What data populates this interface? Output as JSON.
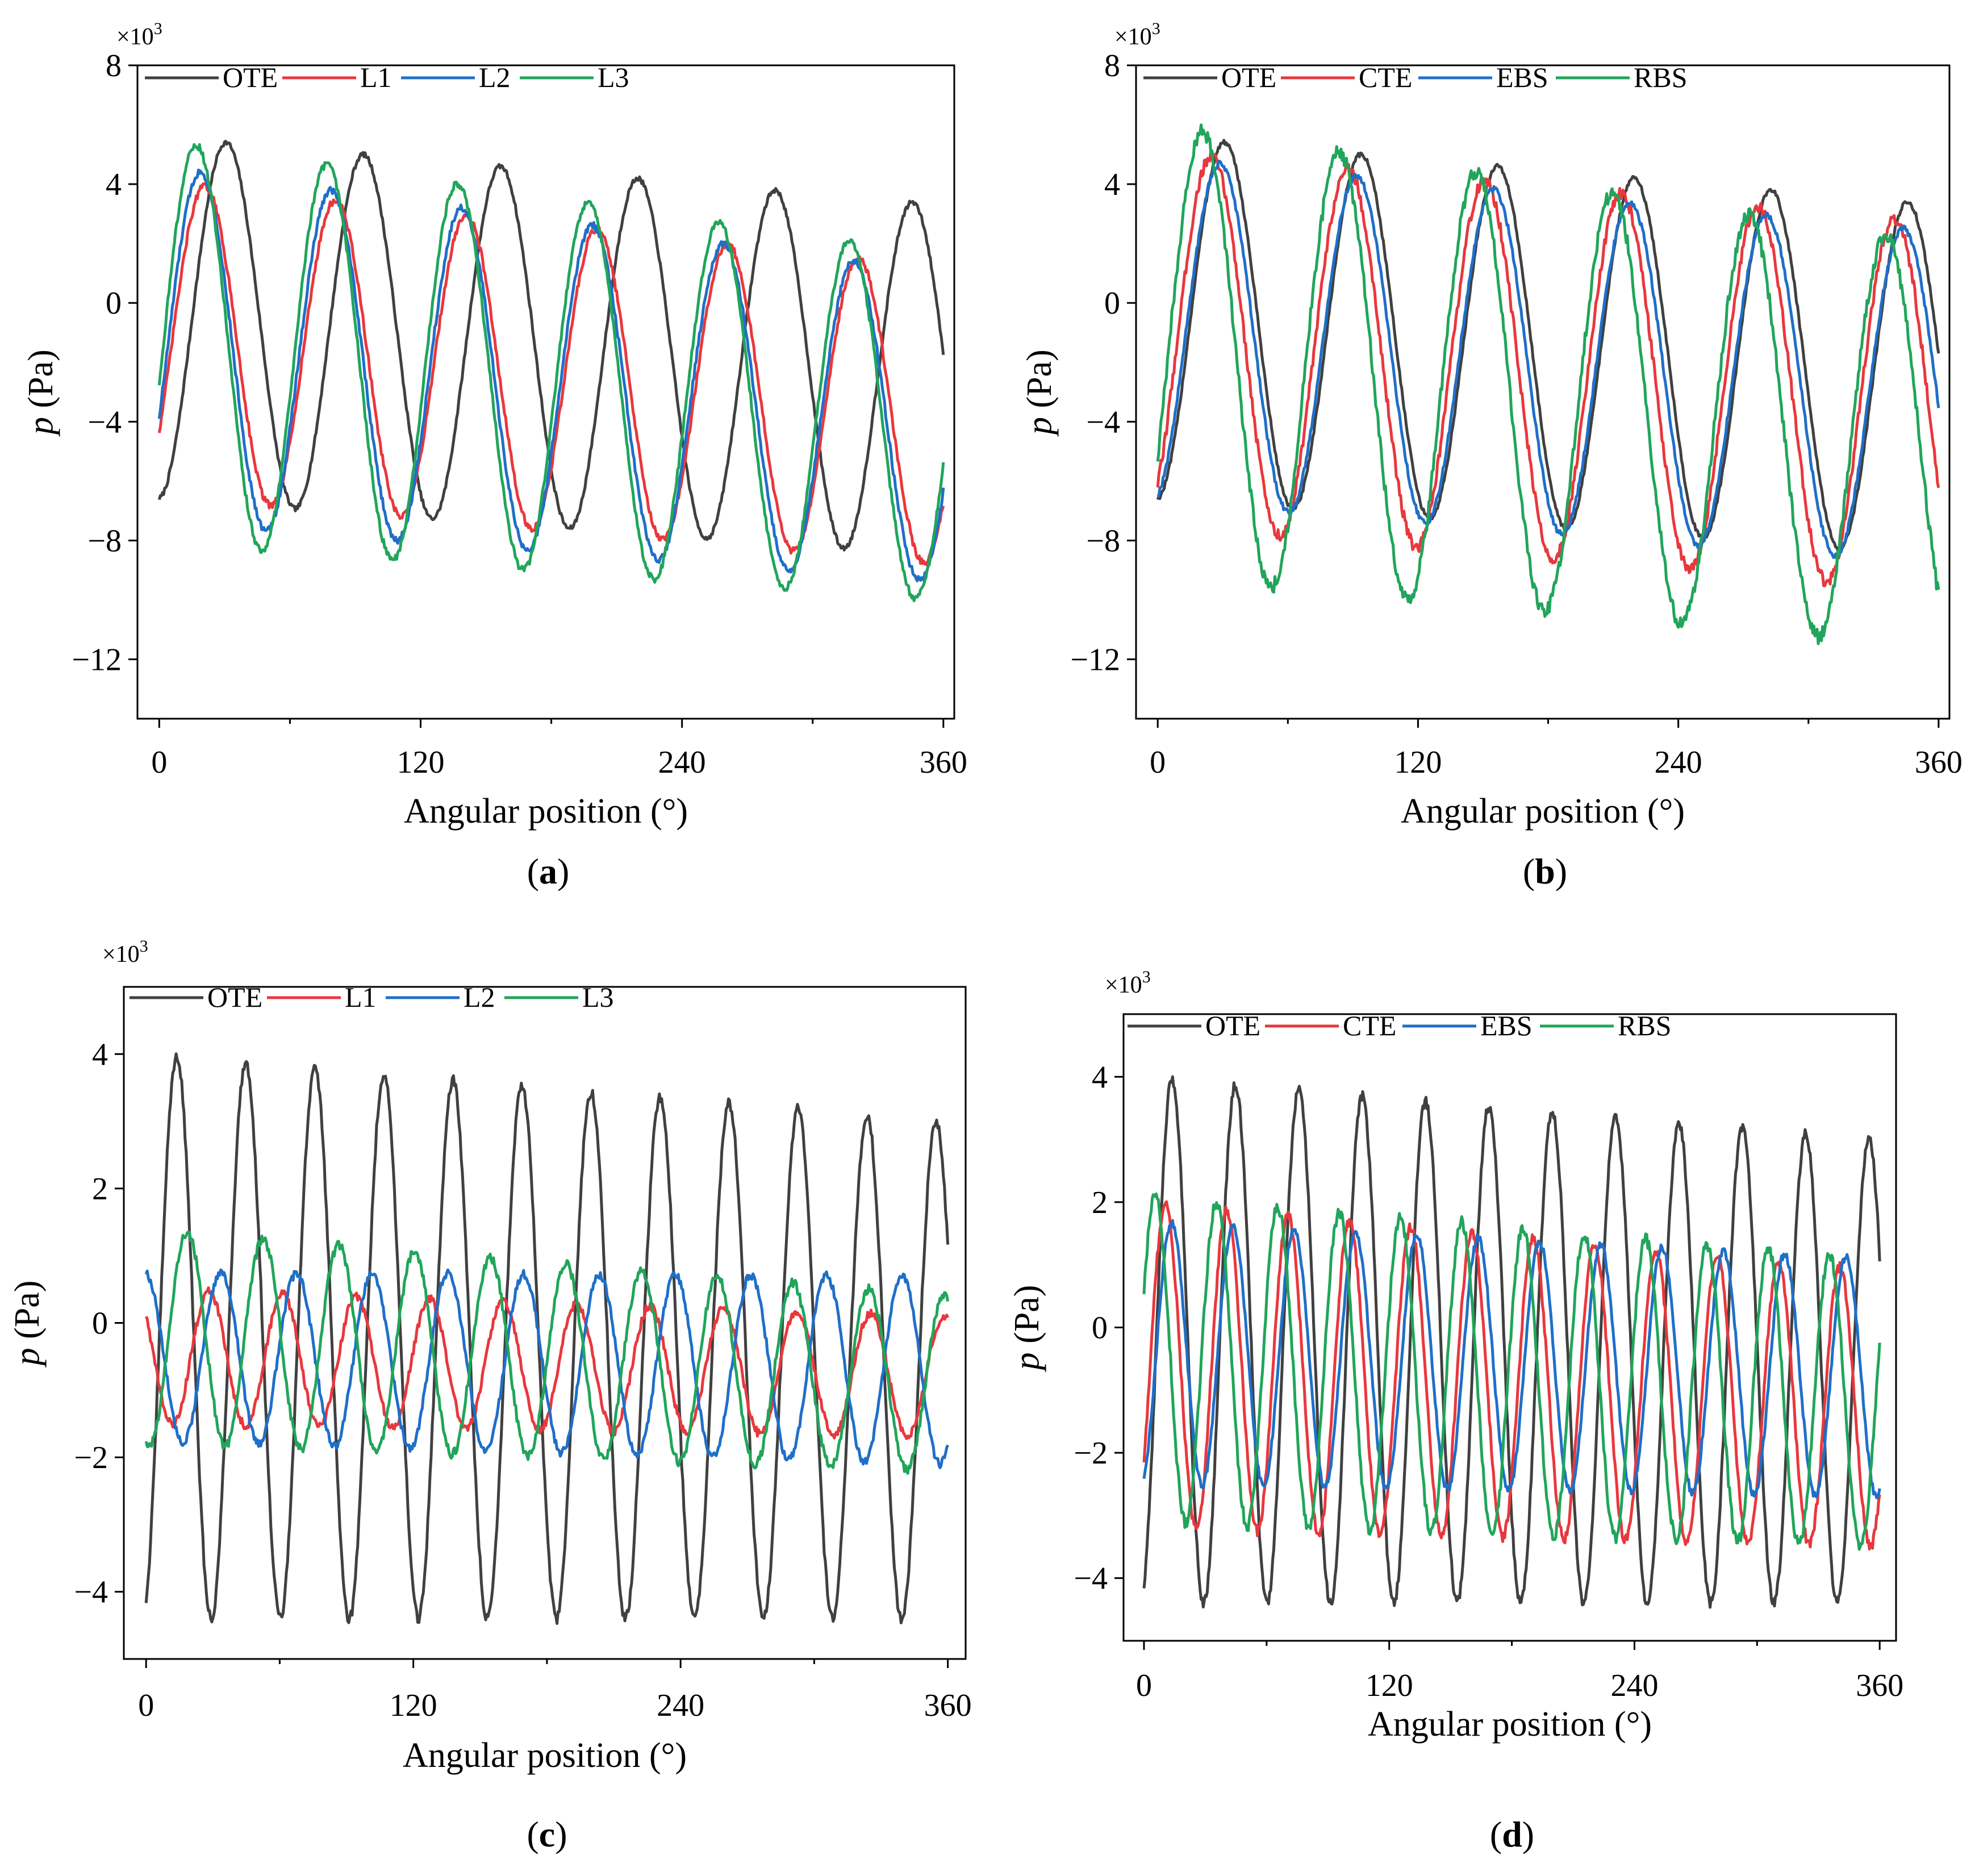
{
  "chart_data": [
    {
      "panel": "(a)",
      "panel_letter": "a",
      "type": "line",
      "title": "",
      "xlabel": "Angular position (°)",
      "ylabel_symbol": "p",
      "ylabel_unit": " (Pa)",
      "multiplier": "×10",
      "multiplier_exp": "3",
      "xlim": [
        -10,
        365
      ],
      "ylim": [
        -14,
        8
      ],
      "xticks": [
        0,
        120,
        240,
        360
      ],
      "xtick_labels": [
        "0",
        "120",
        "240",
        "360"
      ],
      "yticks": [
        8,
        4,
        0,
        -4,
        -8,
        -12
      ],
      "ytick_labels": [
        "8",
        "4",
        "0",
        "−4",
        "−8",
        "−12"
      ],
      "legend": "top-left",
      "series": [
        {
          "name": "OTE",
          "color": "#404040",
          "phase": 15,
          "period": 63,
          "amp_start": 6.1,
          "amp_end": 5.9,
          "off_start": -0.5,
          "off_end": -2.6,
          "noise": 0.08
        },
        {
          "name": "L1",
          "color": "#e8383d",
          "phase": 6,
          "period": 60,
          "amp_start": 5.3,
          "amp_end": 5.0,
          "off_start": -1.2,
          "off_end": -3.8,
          "noise": 0.12
        },
        {
          "name": "L2",
          "color": "#1f6fc8",
          "phase": 4,
          "period": 60,
          "amp_start": 6.0,
          "amp_end": 5.2,
          "off_start": -1.4,
          "off_end": -4.2,
          "noise": 0.12
        },
        {
          "name": "L3",
          "color": "#21a55b",
          "phase": 2,
          "period": 60,
          "amp_start": 6.8,
          "amp_end": 5.8,
          "off_start": -1.3,
          "off_end": -4.2,
          "noise": 0.12
        }
      ]
    },
    {
      "panel": "(b)",
      "panel_letter": "b",
      "type": "line",
      "title": "",
      "xlabel": "Angular position (°)",
      "ylabel_symbol": "p",
      "ylabel_unit": " (Pa)",
      "multiplier": "×10",
      "multiplier_exp": "3",
      "xlim": [
        -10,
        365
      ],
      "ylim": [
        -14,
        8
      ],
      "xticks": [
        0,
        120,
        240,
        360
      ],
      "xtick_labels": [
        "0",
        "120",
        "240",
        "360"
      ],
      "yticks": [
        8,
        4,
        0,
        -4,
        -8,
        -12
      ],
      "ytick_labels": [
        "8",
        "4",
        "0",
        "−4",
        "−8",
        "−12"
      ],
      "legend": "top",
      "series": [
        {
          "name": "OTE",
          "color": "#404040",
          "phase": 15,
          "period": 63,
          "amp_start": 6.1,
          "amp_end": 5.9,
          "off_start": -0.5,
          "off_end": -2.6,
          "noise": 0.08
        },
        {
          "name": "CTE",
          "color": "#e8383d",
          "phase": 9,
          "period": 63,
          "amp_start": 6.3,
          "amp_end": 6.2,
          "off_start": -1.2,
          "off_end": -3.5,
          "noise": 0.2
        },
        {
          "name": "EBS",
          "color": "#1f6fc8",
          "phase": 13,
          "period": 63,
          "amp_start": 5.8,
          "amp_end": 5.6,
          "off_start": -0.9,
          "off_end": -3.2,
          "noise": 0.1
        },
        {
          "name": "RBS",
          "color": "#21a55b",
          "phase": 5,
          "period": 63,
          "amp_start": 7.6,
          "amp_end": 6.8,
          "off_start": -1.6,
          "off_end": -4.8,
          "noise": 0.25
        }
      ]
    },
    {
      "panel": "(c)",
      "panel_letter": "c",
      "type": "line",
      "title": "",
      "xlabel": "Angular position (°)",
      "ylabel_symbol": "p",
      "ylabel_unit": " (Pa)",
      "multiplier": "×10",
      "multiplier_exp": "3",
      "xlim": [
        -10,
        368
      ],
      "ylim": [
        -5,
        5
      ],
      "xticks": [
        0,
        120,
        240,
        360
      ],
      "xtick_labels": [
        "0",
        "120",
        "240",
        "360"
      ],
      "yticks": [
        4,
        2,
        0,
        -2,
        -4
      ],
      "ytick_labels": [
        "4",
        "2",
        "0",
        "−2",
        "−4"
      ],
      "legend": "top",
      "series": [
        {
          "name": "OTE",
          "color": "#404040",
          "phase": 6,
          "period": 31,
          "amp_start": 4.2,
          "amp_end": 3.7,
          "off_start": -0.2,
          "off_end": -0.7,
          "noise": 0.08
        },
        {
          "name": "L1",
          "color": "#e8383d",
          "phase": 20,
          "period": 33,
          "amp_start": 1.0,
          "amp_end": 0.9,
          "off_start": -0.5,
          "off_end": -0.8,
          "noise": 0.06
        },
        {
          "name": "L2",
          "color": "#1f6fc8",
          "phase": 25,
          "period": 34,
          "amp_start": 1.25,
          "amp_end": 1.4,
          "off_start": -0.5,
          "off_end": -0.7,
          "noise": 0.06
        },
        {
          "name": "L3",
          "color": "#21a55b",
          "phase": 10,
          "period": 34,
          "amp_start": 1.6,
          "amp_end": 1.3,
          "off_start": -0.2,
          "off_end": -0.9,
          "noise": 0.07
        }
      ]
    },
    {
      "panel": "(d)",
      "panel_letter": "d",
      "type": "line",
      "title": "",
      "xlabel": "Angular position (°)",
      "ylabel_symbol": "p",
      "ylabel_unit": " (Pa)",
      "multiplier": "×10",
      "multiplier_exp": "3",
      "xlim": [
        -10,
        368
      ],
      "ylim": [
        -5,
        5
      ],
      "xticks": [
        0,
        120,
        240,
        360
      ],
      "xtick_labels": [
        "0",
        "120",
        "240",
        "360"
      ],
      "yticks": [
        4,
        2,
        0,
        -2,
        -4
      ],
      "ytick_labels": [
        "4",
        "2",
        "0",
        "−2",
        "−4"
      ],
      "legend": "top",
      "series": [
        {
          "name": "OTE",
          "color": "#404040",
          "phase": 6,
          "period": 31,
          "amp_start": 4.2,
          "amp_end": 3.7,
          "off_start": -0.2,
          "off_end": -0.7,
          "noise": 0.08
        },
        {
          "name": "CTE",
          "color": "#e8383d",
          "phase": 3,
          "period": 30,
          "amp_start": 2.6,
          "amp_end": 2.2,
          "off_start": -0.6,
          "off_end": -1.3,
          "noise": 0.08
        },
        {
          "name": "EBS",
          "color": "#1f6fc8",
          "phase": 6,
          "period": 30,
          "amp_start": 2.1,
          "amp_end": 1.9,
          "off_start": -0.4,
          "off_end": -0.8,
          "noise": 0.06
        },
        {
          "name": "RBS",
          "color": "#21a55b",
          "phase": -2,
          "period": 30,
          "amp_start": 2.6,
          "amp_end": 2.3,
          "off_start": -0.5,
          "off_end": -1.2,
          "noise": 0.1
        }
      ]
    }
  ]
}
